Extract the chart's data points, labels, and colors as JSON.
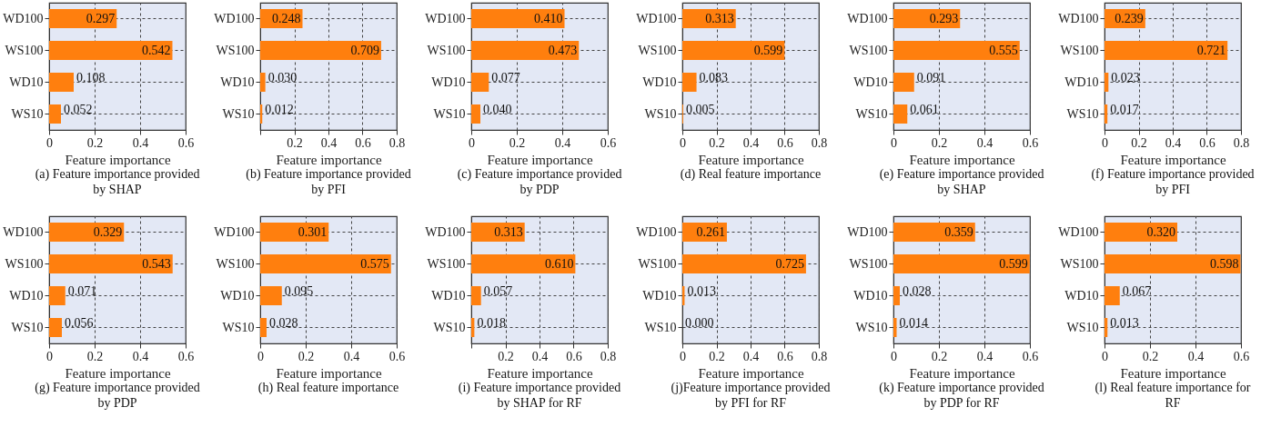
{
  "chart_data": [
    {
      "type": "bar",
      "orientation": "horizontal",
      "title": "(a) Feature importance provided by SHAP",
      "xlabel": "Feature importance",
      "categories": [
        "WD100",
        "WS100",
        "WD10",
        "WS10"
      ],
      "values": [
        0.297,
        0.542,
        0.108,
        0.052
      ],
      "value_labels": [
        "0.297",
        "0.542",
        "0.108",
        "0.052"
      ],
      "color": "#ff7f0e",
      "xlim": [
        0,
        0.6
      ],
      "xticks": [
        0,
        0.2,
        0.4,
        0.6
      ],
      "grid": true
    },
    {
      "type": "bar",
      "orientation": "horizontal",
      "title": "(b) Feature importance provided by PFI",
      "xlabel": "Feature importance",
      "categories": [
        "WD100",
        "WS100",
        "WD10",
        "WS10"
      ],
      "values": [
        0.248,
        0.709,
        0.03,
        0.012
      ],
      "value_labels": [
        "0.248",
        "0.709",
        "0.030",
        "0.012"
      ],
      "color": "#ff7f0e",
      "xlim": [
        0,
        0.8
      ],
      "xticks": [
        {
          "value": 0,
          "label": null
        },
        0.2,
        0.4,
        0.6,
        0.8
      ],
      "grid": true
    },
    {
      "type": "bar",
      "orientation": "horizontal",
      "title": "(c) Feature importance provided by PDP",
      "xlabel": "Feature importance",
      "categories": [
        "WD100",
        "WS100",
        "WD10",
        "WS10"
      ],
      "values": [
        0.41,
        0.473,
        0.077,
        0.04
      ],
      "value_labels": [
        "0.410",
        "0.473",
        "0.077",
        "0.040"
      ],
      "color": "#ff7f0e",
      "xlim": [
        0,
        0.6
      ],
      "xticks": [
        0,
        0.2,
        0.4,
        0.6
      ],
      "grid": true
    },
    {
      "type": "bar",
      "orientation": "horizontal",
      "title": "(d) Real feature importance",
      "xlabel": "Feature importance",
      "categories": [
        "WD100",
        "WS100",
        "WD10",
        "WS10"
      ],
      "values": [
        0.313,
        0.599,
        0.083,
        0.005
      ],
      "value_labels": [
        "0.313",
        "0.599",
        "0.083",
        "0.005"
      ],
      "color": "#ff7f0e",
      "xlim": [
        0,
        0.8
      ],
      "xticks": [
        0,
        0.2,
        0.4,
        0.6,
        0.8
      ],
      "grid": true
    },
    {
      "type": "bar",
      "orientation": "horizontal",
      "title": "(e) Feature importance provided by SHAP",
      "xlabel": "Feature importance",
      "categories": [
        "WD100",
        "WS100",
        "WD10",
        "WS10"
      ],
      "values": [
        0.293,
        0.555,
        0.091,
        0.061
      ],
      "value_labels": [
        "0.293",
        "0.555",
        "0.091",
        "0.061"
      ],
      "color": "#ff7f0e",
      "xlim": [
        0,
        0.6
      ],
      "xticks": [
        0,
        0.2,
        0.4,
        0.6
      ],
      "grid": true
    },
    {
      "type": "bar",
      "orientation": "horizontal",
      "title": "(f) Feature importance provided by PFI",
      "xlabel": "Feature importance",
      "categories": [
        "WD100",
        "WS100",
        "WD10",
        "WS10"
      ],
      "values": [
        0.239,
        0.721,
        0.023,
        0.017
      ],
      "value_labels": [
        "0.239",
        "0.721",
        "0.023",
        "0.017"
      ],
      "color": "#ff7f0e",
      "xlim": [
        0,
        0.8
      ],
      "xticks": [
        0,
        0.2,
        0.4,
        0.6,
        0.8
      ],
      "grid": true
    },
    {
      "type": "bar",
      "orientation": "horizontal",
      "title": "(g) Feature importance provided by PDP",
      "xlabel": "Feature importance",
      "categories": [
        "WD100",
        "WS100",
        "WD10",
        "WS10"
      ],
      "values": [
        0.329,
        0.543,
        0.071,
        0.056
      ],
      "value_labels": [
        "0.329",
        "0.543",
        "0.071",
        "0.056"
      ],
      "color": "#ff7f0e",
      "xlim": [
        0,
        0.6
      ],
      "xticks": [
        0,
        0.2,
        0.4,
        0.6
      ],
      "grid": true
    },
    {
      "type": "bar",
      "orientation": "horizontal",
      "title": "(h) Real feature importance",
      "xlabel": "Feature importance",
      "categories": [
        "WD100",
        "WS100",
        "WD10",
        "WS10"
      ],
      "values": [
        0.301,
        0.575,
        0.095,
        0.028
      ],
      "value_labels": [
        "0.301",
        "0.575",
        "0.095",
        "0.028"
      ],
      "color": "#ff7f0e",
      "xlim": [
        0,
        0.6
      ],
      "xticks": [
        0,
        0.2,
        0.4,
        0.6
      ],
      "grid": true
    },
    {
      "type": "bar",
      "orientation": "horizontal",
      "title": "(i) Feature importance provided by SHAP for RF",
      "xlabel": "Feature importance",
      "categories": [
        "WD100",
        "WS100",
        "WD10",
        "WS10"
      ],
      "values": [
        0.313,
        0.61,
        0.057,
        0.018
      ],
      "value_labels": [
        "0.313",
        "0.610",
        "0.057",
        "0.018"
      ],
      "color": "#ff7f0e",
      "xlim": [
        0,
        0.8
      ],
      "xticks": [
        {
          "value": 0,
          "label": null
        },
        0.2,
        0.4,
        0.6,
        0.8
      ],
      "grid": true
    },
    {
      "type": "bar",
      "orientation": "horizontal",
      "title": "(j)Feature importance provided by PFI for RF",
      "xlabel": "Feature importance",
      "categories": [
        "WD100",
        "WS100",
        "WD10",
        "WS10"
      ],
      "values": [
        0.261,
        0.725,
        0.013,
        0.0
      ],
      "value_labels": [
        "0.261",
        "0.725",
        "0.013",
        "0.000"
      ],
      "color": "#ff7f0e",
      "xlim": [
        0,
        0.8
      ],
      "xticks": [
        0,
        0.2,
        0.4,
        0.6,
        0.8
      ],
      "grid": true
    },
    {
      "type": "bar",
      "orientation": "horizontal",
      "title": "(k) Feature importance provided by PDP for RF",
      "xlabel": "Feature importance",
      "categories": [
        "WD100",
        "WS100",
        "WD10",
        "WS10"
      ],
      "values": [
        0.359,
        0.599,
        0.028,
        0.014
      ],
      "value_labels": [
        "0.359",
        "0.599",
        "0.028",
        "0.014"
      ],
      "color": "#ff7f0e",
      "xlim": [
        0,
        0.6
      ],
      "xticks": [
        0,
        0.2,
        0.4,
        0.6
      ],
      "grid": true
    },
    {
      "type": "bar",
      "orientation": "horizontal",
      "title": "(l) Real feature importance for RF",
      "xlabel": "Feature importance",
      "categories": [
        "WD100",
        "WS100",
        "WD10",
        "WS10"
      ],
      "values": [
        0.32,
        0.598,
        0.067,
        0.013
      ],
      "value_labels": [
        "0.320",
        "0.598",
        "0.067",
        "0.013"
      ],
      "color": "#ff7f0e",
      "xlim": [
        0,
        0.6
      ],
      "xticks": [
        0,
        0.2,
        0.4,
        0.6
      ],
      "grid": true
    }
  ]
}
